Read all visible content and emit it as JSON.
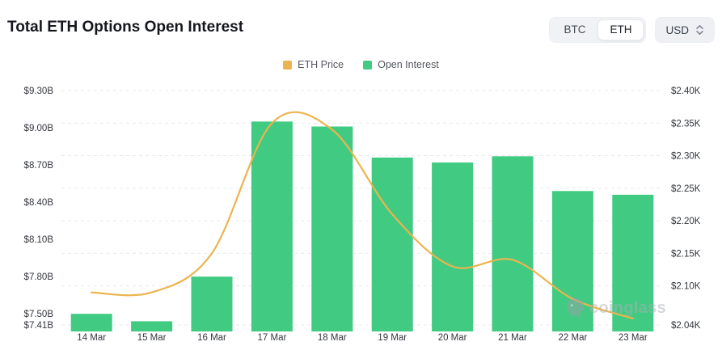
{
  "header": {
    "title": "Total ETH Options Open Interest"
  },
  "controls": {
    "coin_toggle": {
      "options": [
        "BTC",
        "ETH"
      ],
      "selected": "ETH"
    },
    "currency": {
      "label": "USD",
      "icon": "updown-chevron-icon"
    }
  },
  "legend": [
    {
      "label": "ETH Price",
      "color": "#EBB44E"
    },
    {
      "label": "Open Interest",
      "color": "#41CB82"
    }
  ],
  "watermark": {
    "text": "coinglass",
    "icon": "coinglass-logo-icon"
  },
  "chart_data": {
    "type": "combo",
    "title": "Total ETH Options Open Interest",
    "categories": [
      "14 Mar",
      "15 Mar",
      "16 Mar",
      "17 Mar",
      "18 Mar",
      "19 Mar",
      "20 Mar",
      "21 Mar",
      "22 Mar",
      "23 Mar"
    ],
    "series": [
      {
        "name": "Open Interest",
        "type": "bar",
        "axis": "left",
        "unit": "billion USD",
        "color": "#41CB82",
        "values": [
          7.5,
          7.44,
          7.8,
          9.05,
          9.01,
          8.76,
          8.72,
          8.77,
          8.49,
          8.46
        ]
      },
      {
        "name": "ETH Price",
        "type": "line",
        "axis": "right",
        "unit": "thousand USD",
        "color": "#EBB44E",
        "smooth": true,
        "values": [
          2.09,
          2.09,
          2.15,
          2.35,
          2.34,
          2.21,
          2.13,
          2.14,
          2.08,
          2.05
        ]
      }
    ],
    "left_axis": {
      "tick_labels": [
        "$9.30B",
        "$9.00B",
        "$8.70B",
        "$8.40B",
        "$8.10B",
        "$7.80B",
        "$7.50B",
        "$7.41B"
      ],
      "tick_values": [
        9.3,
        9.0,
        8.7,
        8.4,
        8.1,
        7.8,
        7.5,
        7.41
      ],
      "min": 7.41,
      "max": 9.3
    },
    "right_axis": {
      "tick_labels": [
        "$2.40K",
        "$2.35K",
        "$2.30K",
        "$2.25K",
        "$2.20K",
        "$2.15K",
        "$2.10K",
        "$2.04K"
      ],
      "tick_values": [
        2.4,
        2.35,
        2.3,
        2.25,
        2.2,
        2.15,
        2.1,
        2.04
      ],
      "min": 2.04,
      "max": 2.4
    },
    "grid": "horizontal-dashed",
    "legend_position": "top-center"
  }
}
